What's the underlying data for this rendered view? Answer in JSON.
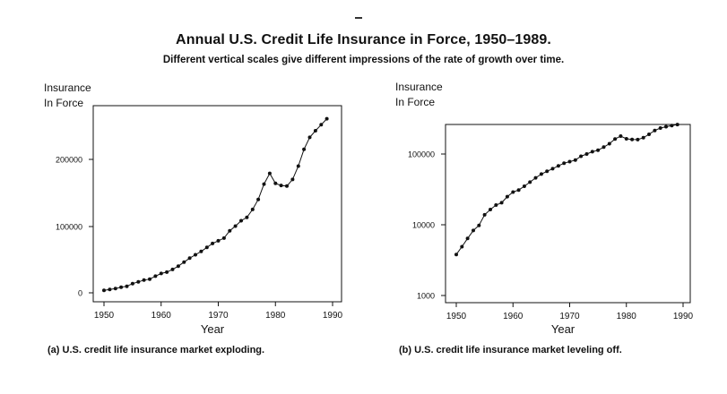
{
  "page": {
    "title": "Annual U.S. Credit Life Insurance in Force, 1950–1989.",
    "subtitle": "Different vertical scales give different impressions of the rate of growth over time."
  },
  "chart_data": [
    {
      "type": "line",
      "caption": "(a) U.S. credit life insurance market exploding.",
      "ylabel": "Insurance\nIn Force",
      "xlabel": "Year",
      "scale": "linear",
      "xlim": [
        1950,
        1990
      ],
      "ylim": [
        0,
        260000
      ],
      "x_ticks": [
        "1950",
        "1960",
        "1970",
        "1980",
        "1990"
      ],
      "y_ticks": [
        "0",
        "100000",
        "200000"
      ],
      "grid": false,
      "x": [
        1950,
        1951,
        1952,
        1953,
        1954,
        1955,
        1956,
        1957,
        1958,
        1959,
        1960,
        1961,
        1962,
        1963,
        1964,
        1965,
        1966,
        1967,
        1968,
        1969,
        1970,
        1971,
        1972,
        1973,
        1974,
        1975,
        1976,
        1977,
        1978,
        1979,
        1980,
        1981,
        1982,
        1983,
        1984,
        1985,
        1986,
        1987,
        1988,
        1989
      ],
      "values": [
        3800,
        4900,
        6400,
        8300,
        9800,
        13800,
        16400,
        19000,
        20500,
        25000,
        29000,
        31000,
        35000,
        40000,
        46000,
        52000,
        57000,
        62000,
        68000,
        74000,
        78000,
        82000,
        93000,
        100000,
        108000,
        113000,
        125000,
        140000,
        163000,
        179000,
        164000,
        161000,
        160000,
        170000,
        190000,
        215000,
        233000,
        243000,
        252000,
        261000
      ]
    },
    {
      "type": "line",
      "caption": "(b) U.S. credit life insurance market leveling off.",
      "ylabel": "Insurance\nIn Force",
      "xlabel": "Year",
      "scale": "log",
      "xlim": [
        1950,
        1990
      ],
      "ylim": [
        1000,
        300000
      ],
      "x_ticks": [
        "1950",
        "1960",
        "1970",
        "1980",
        "1990"
      ],
      "y_ticks": [
        "1000",
        "10000",
        "100000"
      ],
      "grid": false,
      "x": [
        1950,
        1951,
        1952,
        1953,
        1954,
        1955,
        1956,
        1957,
        1958,
        1959,
        1960,
        1961,
        1962,
        1963,
        1964,
        1965,
        1966,
        1967,
        1968,
        1969,
        1970,
        1971,
        1972,
        1973,
        1974,
        1975,
        1976,
        1977,
        1978,
        1979,
        1980,
        1981,
        1982,
        1983,
        1984,
        1985,
        1986,
        1987,
        1988,
        1989
      ],
      "values": [
        3800,
        4900,
        6400,
        8300,
        9800,
        13800,
        16400,
        19000,
        20500,
        25000,
        29000,
        31000,
        35000,
        40000,
        46000,
        52000,
        57000,
        62000,
        68000,
        74000,
        78000,
        82000,
        93000,
        100000,
        108000,
        113000,
        125000,
        140000,
        163000,
        179000,
        164000,
        161000,
        160000,
        170000,
        190000,
        215000,
        233000,
        243000,
        252000,
        261000
      ]
    }
  ]
}
